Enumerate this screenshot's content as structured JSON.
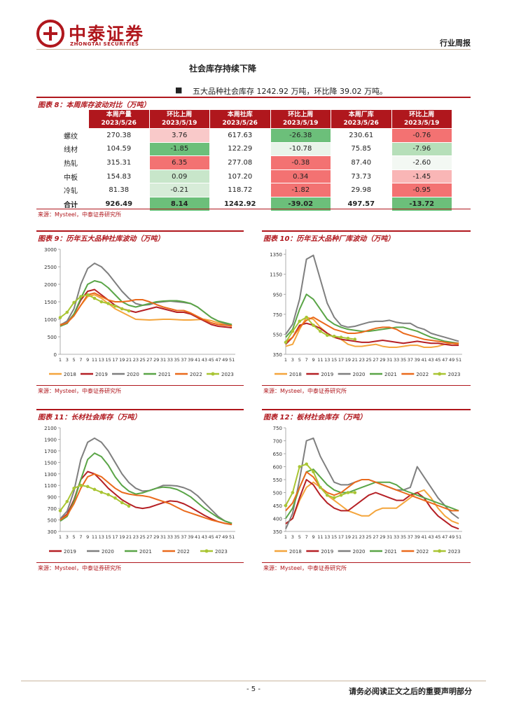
{
  "header": {
    "logo_cn": "中泰证券",
    "logo_en": "ZHONGTAI SECURITIES",
    "doc_type": "行业周报"
  },
  "section_title": "社会库存持续下降",
  "bullet_text": "五大品种社会库存 1242.92 万吨，环比降 39.02 万吨。",
  "table": {
    "title": "图表 8：本周库存波动对比（万吨）",
    "headers": [
      {
        "l1": "本周产量",
        "l2": "2023/5/26"
      },
      {
        "l1": "环比上周",
        "l2": "2023/5/19"
      },
      {
        "l1": "本周社库",
        "l2": "2023/5/26"
      },
      {
        "l1": "环比上周",
        "l2": "2023/5/19"
      },
      {
        "l1": "本周厂库",
        "l2": "2023/5/26"
      },
      {
        "l1": "环比上周",
        "l2": "2023/5/19"
      }
    ],
    "rows": [
      {
        "name": "螺纹",
        "cells": [
          "270.38",
          "3.76",
          "617.63",
          "-26.38",
          "230.61",
          "-0.76"
        ]
      },
      {
        "name": "线材",
        "cells": [
          "104.59",
          "-1.85",
          "122.29",
          "-10.78",
          "75.85",
          "-7.96"
        ]
      },
      {
        "name": "热轧",
        "cells": [
          "315.31",
          "6.35",
          "277.08",
          "-0.38",
          "87.40",
          "-2.60"
        ]
      },
      {
        "name": "中板",
        "cells": [
          "154.83",
          "0.09",
          "107.20",
          "0.34",
          "73.73",
          "-1.45"
        ]
      },
      {
        "name": "冷轧",
        "cells": [
          "81.38",
          "-0.21",
          "118.72",
          "-1.82",
          "29.98",
          "-0.95"
        ]
      }
    ],
    "total": {
      "name": "合计",
      "cells": [
        "926.49",
        "8.14",
        "1242.92",
        "-39.02",
        "497.57",
        "-13.72"
      ]
    },
    "cell_colors": [
      [
        "#ffffff",
        "#f9c9c9",
        "#ffffff",
        "#6cbf7a",
        "#ffffff",
        "#f37272"
      ],
      [
        "#ffffff",
        "#6cbf7a",
        "#ffffff",
        "#e9f4ea",
        "#ffffff",
        "#b6dfb9"
      ],
      [
        "#ffffff",
        "#f37272",
        "#ffffff",
        "#f37272",
        "#ffffff",
        "#f3f8f3"
      ],
      [
        "#ffffff",
        "#c8e6ca",
        "#ffffff",
        "#f37272",
        "#ffffff",
        "#f9b6b6"
      ],
      [
        "#ffffff",
        "#d7ecd8",
        "#ffffff",
        "#f37272",
        "#ffffff",
        "#f37272"
      ]
    ],
    "total_colors": [
      "#ffffff",
      "#6cbf7a",
      "#ffffff",
      "#6cbf7a",
      "#ffffff",
      "#6cbf7a"
    ],
    "source": "来源：Mysteel，中泰证券研究所"
  },
  "colors": {
    "brand": "#b0171d",
    "y2018": "#f4a53c",
    "y2019": "#b52025",
    "y2020": "#7f7f7f",
    "y2021": "#5aa547",
    "y2022": "#ea6a1c",
    "y2023": "#a9c534"
  },
  "chart_data": [
    {
      "id": "fig9",
      "type": "line",
      "title": "图表 9：历年五大品种社库波动（万吨）",
      "x_ticks": [
        "1",
        "3",
        "5",
        "7",
        "9",
        "11",
        "13",
        "15",
        "17",
        "19",
        "21",
        "23",
        "25",
        "27",
        "29",
        "31",
        "33",
        "35",
        "37",
        "39",
        "41",
        "43",
        "45",
        "47",
        "49",
        "51"
      ],
      "ylim": [
        0,
        3000
      ],
      "y_ticks": [
        "0",
        "500",
        "1000",
        "1500",
        "2000",
        "2500",
        "3000"
      ],
      "series": [
        {
          "name": "2018",
          "color": "#f4a53c",
          "values": [
            850,
            920,
            1100,
            1400,
            1650,
            1700,
            1600,
            1450,
            1300,
            1200,
            1100,
            1000,
            990,
            980,
            990,
            1000,
            1000,
            990,
            980,
            980,
            990,
            1000,
            960,
            900,
            850,
            800
          ]
        },
        {
          "name": "2019",
          "color": "#b52025",
          "values": [
            820,
            900,
            1150,
            1550,
            1800,
            1850,
            1700,
            1550,
            1400,
            1300,
            1250,
            1200,
            1250,
            1300,
            1350,
            1300,
            1250,
            1200,
            1200,
            1150,
            1050,
            950,
            850,
            800,
            780,
            760
          ]
        },
        {
          "name": "2020",
          "color": "#7f7f7f",
          "values": [
            830,
            950,
            1300,
            2000,
            2450,
            2600,
            2500,
            2300,
            2050,
            1800,
            1600,
            1450,
            1400,
            1420,
            1480,
            1500,
            1520,
            1500,
            1480,
            1450,
            1350,
            1200,
            1050,
            950,
            880,
            820
          ]
        },
        {
          "name": "2021",
          "color": "#5aa547",
          "values": [
            800,
            880,
            1150,
            1600,
            2000,
            2100,
            2050,
            1900,
            1700,
            1500,
            1400,
            1350,
            1400,
            1450,
            1500,
            1520,
            1530,
            1530,
            1500,
            1450,
            1350,
            1200,
            1050,
            950,
            900,
            850
          ]
        },
        {
          "name": "2022",
          "color": "#ea6a1c",
          "values": [
            830,
            900,
            1100,
            1400,
            1700,
            1750,
            1650,
            1550,
            1500,
            1500,
            1520,
            1560,
            1560,
            1500,
            1420,
            1350,
            1300,
            1250,
            1250,
            1180,
            1080,
            980,
            900,
            850,
            830,
            820
          ]
        },
        {
          "name": "2023",
          "color": "#a9c534",
          "values": [
            1050,
            1200,
            1480,
            1650,
            1700,
            1600,
            1500,
            1450,
            1380,
            1300,
            1240
          ]
        }
      ]
    },
    {
      "id": "fig10",
      "type": "line",
      "title": "图表 10：历年五大品种厂库波动（万吨）",
      "x_ticks": [
        "1",
        "3",
        "5",
        "7",
        "9",
        "11",
        "13",
        "15",
        "17",
        "19",
        "21",
        "23",
        "25",
        "27",
        "29",
        "31",
        "33",
        "35",
        "37",
        "39",
        "41",
        "43",
        "45",
        "47",
        "49",
        "51"
      ],
      "ylim": [
        350,
        1400
      ],
      "y_ticks": [
        "350",
        "550",
        "750",
        "950",
        "1150",
        "1350"
      ],
      "series": [
        {
          "name": "2018",
          "color": "#f4a53c",
          "values": [
            430,
            450,
            600,
            720,
            700,
            620,
            560,
            520,
            500,
            450,
            430,
            430,
            440,
            450,
            430,
            420,
            420,
            430,
            440,
            440,
            420,
            420,
            430,
            450,
            460,
            450
          ]
        },
        {
          "name": "2019",
          "color": "#b52025",
          "values": [
            450,
            520,
            640,
            660,
            640,
            610,
            560,
            520,
            500,
            490,
            480,
            470,
            470,
            480,
            490,
            480,
            470,
            460,
            470,
            480,
            470,
            460,
            460,
            450,
            440,
            440
          ]
        },
        {
          "name": "2020",
          "color": "#7f7f7f",
          "values": [
            550,
            650,
            900,
            1300,
            1340,
            1100,
            860,
            720,
            640,
            620,
            630,
            650,
            670,
            680,
            680,
            690,
            670,
            660,
            660,
            620,
            600,
            560,
            540,
            520,
            500,
            480
          ]
        },
        {
          "name": "2021",
          "color": "#5aa547",
          "values": [
            520,
            600,
            800,
            950,
            900,
            800,
            700,
            650,
            620,
            600,
            590,
            580,
            580,
            590,
            600,
            610,
            620,
            620,
            600,
            580,
            550,
            520,
            500,
            480,
            470,
            460
          ]
        },
        {
          "name": "2022",
          "color": "#ea6a1c",
          "values": [
            470,
            520,
            620,
            690,
            720,
            680,
            640,
            600,
            580,
            560,
            560,
            570,
            590,
            610,
            620,
            620,
            600,
            560,
            540,
            520,
            500,
            490,
            480,
            470,
            460,
            460
          ]
        },
        {
          "name": "2023",
          "color": "#a9c534",
          "values": [
            470,
            580,
            680,
            720,
            640,
            580,
            540,
            530,
            520,
            510,
            500
          ]
        }
      ]
    },
    {
      "id": "fig11",
      "type": "line",
      "title": "图表 11：长材社会库存（万吨）",
      "x_ticks": [
        "1",
        "3",
        "5",
        "7",
        "9",
        "11",
        "13",
        "15",
        "17",
        "19",
        "21",
        "23",
        "25",
        "27",
        "29",
        "31",
        "33",
        "35",
        "37",
        "39",
        "41",
        "43",
        "45",
        "47",
        "49",
        "51"
      ],
      "ylim": [
        300,
        2100
      ],
      "y_ticks": [
        "300",
        "500",
        "700",
        "900",
        "1100",
        "1300",
        "1500",
        "1700",
        "1900",
        "2100"
      ],
      "series": [
        {
          "name": "2019",
          "color": "#b52025",
          "values": [
            500,
            600,
            850,
            1200,
            1340,
            1300,
            1180,
            1050,
            950,
            850,
            780,
            720,
            700,
            720,
            760,
            800,
            830,
            820,
            780,
            720,
            650,
            580,
            520,
            470,
            440,
            420
          ]
        },
        {
          "name": "2020",
          "color": "#7f7f7f",
          "values": [
            520,
            650,
            1000,
            1550,
            1850,
            1920,
            1850,
            1700,
            1500,
            1300,
            1150,
            1050,
            1000,
            1010,
            1050,
            1100,
            1100,
            1090,
            1060,
            1010,
            920,
            800,
            680,
            560,
            480,
            440
          ]
        },
        {
          "name": "2021",
          "color": "#5aa547",
          "values": [
            480,
            560,
            820,
            1200,
            1550,
            1660,
            1600,
            1450,
            1250,
            1100,
            1000,
            950,
            970,
            1010,
            1050,
            1070,
            1060,
            1030,
            970,
            900,
            800,
            700,
            620,
            540,
            480,
            440
          ]
        },
        {
          "name": "2022",
          "color": "#ea6a1c",
          "values": [
            500,
            580,
            780,
            1050,
            1250,
            1300,
            1250,
            1150,
            1050,
            980,
            950,
            930,
            920,
            900,
            860,
            820,
            780,
            720,
            660,
            620,
            580,
            540,
            500,
            470,
            440,
            420
          ]
        },
        {
          "name": "2023",
          "color": "#a9c534",
          "values": [
            660,
            820,
            1050,
            1100,
            1080,
            1030,
            980,
            940,
            880,
            800,
            740
          ]
        }
      ]
    },
    {
      "id": "fig12",
      "type": "line",
      "title": "图表 12：板材社会库存（万吨）",
      "x_ticks": [
        "1",
        "3",
        "5",
        "7",
        "9",
        "11",
        "13",
        "15",
        "17",
        "19",
        "21",
        "23",
        "25",
        "27",
        "29",
        "31",
        "33",
        "35",
        "37",
        "39",
        "41",
        "43",
        "45",
        "47",
        "49",
        "51"
      ],
      "ylim": [
        350,
        750
      ],
      "y_ticks": [
        "350",
        "400",
        "450",
        "500",
        "550",
        "600",
        "650",
        "700",
        "750"
      ],
      "series": [
        {
          "name": "2018",
          "color": "#f4a53c",
          "values": [
            380,
            400,
            470,
            520,
            540,
            520,
            490,
            470,
            450,
            430,
            420,
            410,
            410,
            430,
            440,
            440,
            440,
            460,
            480,
            500,
            510,
            480,
            440,
            410,
            390,
            380
          ]
        },
        {
          "name": "2019",
          "color": "#b52025",
          "values": [
            380,
            400,
            480,
            550,
            530,
            490,
            460,
            440,
            430,
            430,
            450,
            470,
            490,
            500,
            490,
            480,
            470,
            470,
            490,
            500,
            480,
            440,
            410,
            390,
            370,
            360
          ]
        },
        {
          "name": "2020",
          "color": "#7f7f7f",
          "values": [
            360,
            420,
            550,
            700,
            710,
            640,
            590,
            540,
            530,
            530,
            540,
            550,
            550,
            540,
            530,
            520,
            510,
            510,
            520,
            600,
            560,
            520,
            480,
            450,
            420,
            400
          ]
        },
        {
          "name": "2021",
          "color": "#5aa547",
          "values": [
            400,
            440,
            520,
            580,
            590,
            560,
            530,
            510,
            500,
            500,
            510,
            520,
            530,
            540,
            540,
            540,
            530,
            510,
            500,
            490,
            480,
            470,
            460,
            450,
            440,
            430
          ]
        },
        {
          "name": "2022",
          "color": "#ea6a1c",
          "values": [
            430,
            460,
            520,
            580,
            560,
            520,
            500,
            490,
            500,
            520,
            540,
            550,
            550,
            540,
            530,
            520,
            510,
            500,
            490,
            480,
            470,
            460,
            450,
            440,
            430,
            430
          ]
        },
        {
          "name": "2023",
          "color": "#a9c534",
          "values": [
            450,
            500,
            600,
            610,
            580,
            520,
            490,
            480,
            490,
            500,
            500
          ]
        }
      ]
    }
  ],
  "chart_sources": [
    "来源：Mysteel，中泰证券研究所",
    "来源：Mysteel，中泰证券研究所",
    "来源：Mysteel，中泰证券研究所",
    "来源：Mysteel，中泰证券研究所"
  ],
  "footer": {
    "page": "- 5 -",
    "note": "请务必阅读正文之后的重要声明部分"
  }
}
